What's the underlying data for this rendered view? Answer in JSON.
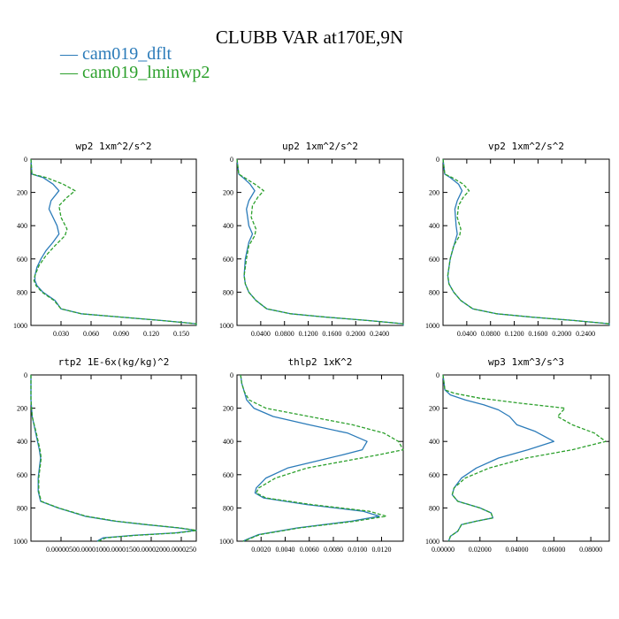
{
  "title": "CLUBB VAR at170E,9N",
  "legend": [
    {
      "label": "cam019_dflt",
      "color": "#2b7bb9"
    },
    {
      "label": "cam019_lminwp2",
      "color": "#2ca02c"
    }
  ],
  "chart_data": [
    {
      "type": "line",
      "title": "wp2  1xm^2/s^2",
      "xlim": [
        0,
        0.165
      ],
      "ylim": [
        0,
        1000
      ],
      "y_inverted": true,
      "xticks": [
        0.03,
        0.06,
        0.09,
        0.12,
        0.15
      ],
      "xtick_labels": [
        "0.030",
        "0.060",
        "0.090",
        "0.120",
        "0.150"
      ],
      "yticks": [
        0,
        200,
        400,
        600,
        800,
        1000
      ],
      "ytick_labels": [
        "0",
        "200",
        "400",
        "600",
        "800",
        "1000"
      ],
      "series": [
        {
          "name": "cam019_dflt",
          "y": [
            0,
            90,
            110,
            150,
            190,
            250,
            300,
            400,
            450,
            500,
            550,
            600,
            650,
            700,
            730,
            760,
            800,
            850,
            900,
            930,
            950,
            970,
            990,
            1000
          ],
          "x": [
            0,
            0.001,
            0.012,
            0.022,
            0.028,
            0.02,
            0.018,
            0.026,
            0.028,
            0.022,
            0.015,
            0.01,
            0.006,
            0.004,
            0.004,
            0.006,
            0.012,
            0.024,
            0.03,
            0.05,
            0.09,
            0.13,
            0.165,
            0.165
          ]
        },
        {
          "name": "cam019_lminwp2",
          "y": [
            0,
            90,
            110,
            150,
            190,
            230,
            280,
            350,
            420,
            460,
            520,
            580,
            640,
            700,
            730,
            760,
            800,
            850,
            900,
            930,
            950,
            970,
            990,
            1000
          ],
          "x": [
            0,
            0.001,
            0.015,
            0.032,
            0.044,
            0.036,
            0.028,
            0.03,
            0.036,
            0.034,
            0.024,
            0.015,
            0.008,
            0.004,
            0.003,
            0.005,
            0.011,
            0.023,
            0.03,
            0.05,
            0.09,
            0.13,
            0.165,
            0.165
          ]
        }
      ]
    },
    {
      "type": "line",
      "title": "up2  1xm^2/s^2",
      "xlim": [
        0,
        0.28
      ],
      "ylim": [
        0,
        1000
      ],
      "y_inverted": true,
      "xticks": [
        0.04,
        0.08,
        0.12,
        0.16,
        0.2,
        0.24
      ],
      "xtick_labels": [
        "0.0400",
        "0.0800",
        "0.1200",
        "0.1600",
        "0.2000",
        "0.2400"
      ],
      "yticks": [
        0,
        200,
        400,
        600,
        800,
        1000
      ],
      "ytick_labels": [
        "0",
        "200",
        "400",
        "600",
        "800",
        "1000"
      ],
      "series": [
        {
          "name": "cam019_dflt",
          "y": [
            0,
            90,
            110,
            150,
            190,
            250,
            300,
            400,
            450,
            500,
            600,
            700,
            750,
            800,
            850,
            900,
            930,
            950,
            970,
            990,
            1000
          ],
          "x": [
            0,
            0.003,
            0.01,
            0.022,
            0.03,
            0.02,
            0.016,
            0.02,
            0.026,
            0.02,
            0.014,
            0.012,
            0.014,
            0.02,
            0.032,
            0.05,
            0.09,
            0.15,
            0.22,
            0.28,
            0.28
          ]
        },
        {
          "name": "cam019_lminwp2",
          "y": [
            0,
            90,
            110,
            150,
            190,
            230,
            280,
            350,
            420,
            460,
            520,
            600,
            700,
            750,
            800,
            850,
            900,
            930,
            950,
            970,
            990,
            1000
          ],
          "x": [
            0,
            0.003,
            0.012,
            0.03,
            0.045,
            0.035,
            0.026,
            0.024,
            0.032,
            0.03,
            0.02,
            0.016,
            0.012,
            0.014,
            0.02,
            0.032,
            0.05,
            0.09,
            0.15,
            0.22,
            0.28,
            0.28
          ]
        }
      ]
    },
    {
      "type": "line",
      "title": "vp2  1xm^2/s^2",
      "xlim": [
        0,
        0.28
      ],
      "ylim": [
        0,
        1000
      ],
      "y_inverted": true,
      "xticks": [
        0.04,
        0.08,
        0.12,
        0.16,
        0.2,
        0.24
      ],
      "xtick_labels": [
        "0.0400",
        "0.0800",
        "0.1200",
        "0.1600",
        "0.2000",
        "0.2400"
      ],
      "yticks": [
        0,
        200,
        400,
        600,
        800,
        1000
      ],
      "ytick_labels": [
        "0",
        "200",
        "400",
        "600",
        "800",
        "1000"
      ],
      "series": [
        {
          "name": "cam019_dflt",
          "y": [
            0,
            90,
            110,
            150,
            190,
            250,
            300,
            400,
            450,
            500,
            600,
            700,
            750,
            800,
            850,
            900,
            930,
            950,
            970,
            990,
            1000
          ],
          "x": [
            0,
            0.003,
            0.012,
            0.026,
            0.032,
            0.024,
            0.02,
            0.022,
            0.024,
            0.02,
            0.012,
            0.008,
            0.01,
            0.018,
            0.03,
            0.05,
            0.09,
            0.15,
            0.22,
            0.28,
            0.28
          ]
        },
        {
          "name": "cam019_lminwp2",
          "y": [
            0,
            90,
            110,
            150,
            190,
            230,
            280,
            350,
            420,
            460,
            520,
            600,
            700,
            750,
            800,
            850,
            900,
            930,
            950,
            970,
            990,
            1000
          ],
          "x": [
            0,
            0.003,
            0.015,
            0.034,
            0.044,
            0.034,
            0.026,
            0.024,
            0.03,
            0.028,
            0.018,
            0.012,
            0.008,
            0.01,
            0.018,
            0.03,
            0.05,
            0.09,
            0.15,
            0.22,
            0.28,
            0.28
          ]
        }
      ]
    },
    {
      "type": "line",
      "title": "rtp2  1E-6x(kg/kg)^2",
      "xlim": [
        0,
        2.75e-05
      ],
      "ylim": [
        0,
        1000
      ],
      "y_inverted": true,
      "xticks": [
        5e-06,
        1e-05,
        1.5e-05,
        2e-05,
        2.5e-05
      ],
      "xtick_labels": [
        "0.0000050",
        "0.0000100",
        "0.0000150",
        "0.0000200",
        "0.0000250"
      ],
      "yticks": [
        0,
        200,
        400,
        600,
        800,
        1000
      ],
      "ytick_labels": [
        "0",
        "200",
        "400",
        "600",
        "800",
        "1000"
      ],
      "series": [
        {
          "name": "cam019_dflt",
          "y": [
            0,
            150,
            250,
            350,
            450,
            500,
            560,
            620,
            700,
            760,
            800,
            850,
            880,
            900,
            920,
            935,
            950,
            965,
            980,
            1000
          ],
          "x": [
            0,
            0,
            2e-07,
            8e-07,
            1.4e-06,
            1.6e-06,
            1.4e-06,
            1.2e-06,
            1.2e-06,
            1.6e-06,
            4.5e-06,
            9e-06,
            1.4e-05,
            1.9e-05,
            2.45e-05,
            2.75e-05,
            2.4e-05,
            1.7e-05,
            1.2e-05,
            1.1e-05
          ]
        },
        {
          "name": "cam019_lminwp2",
          "y": [
            0,
            150,
            250,
            350,
            450,
            500,
            560,
            620,
            700,
            760,
            800,
            850,
            880,
            900,
            920,
            935,
            950,
            965,
            980,
            1000
          ],
          "x": [
            0,
            0,
            2e-07,
            9e-07,
            1.5e-06,
            1.7e-06,
            1.5e-06,
            1.3e-06,
            1.3e-06,
            1.7e-06,
            4.6e-06,
            9.2e-06,
            1.42e-05,
            1.92e-05,
            2.48e-05,
            2.75e-05,
            2.45e-05,
            1.75e-05,
            1.25e-05,
            1.12e-05
          ]
        }
      ]
    },
    {
      "type": "line",
      "title": "thlp2  1xK^2",
      "xlim": [
        0,
        0.0138
      ],
      "ylim": [
        0,
        1000
      ],
      "y_inverted": true,
      "xticks": [
        0.002,
        0.004,
        0.006,
        0.008,
        0.01,
        0.012
      ],
      "xtick_labels": [
        "0.0020",
        "0.0040",
        "0.0060",
        "0.0080",
        "0.0100",
        "0.0120"
      ],
      "yticks": [
        0,
        200,
        400,
        600,
        800,
        1000
      ],
      "ytick_labels": [
        "0",
        "200",
        "400",
        "600",
        "800",
        "1000"
      ],
      "series": [
        {
          "name": "cam019_dflt",
          "y": [
            0,
            50,
            100,
            150,
            200,
            250,
            300,
            350,
            400,
            450,
            480,
            520,
            560,
            620,
            680,
            710,
            740,
            780,
            820,
            850,
            880,
            920,
            960,
            990,
            1000
          ],
          "x": [
            0.0003,
            0.0004,
            0.0006,
            0.0008,
            0.0014,
            0.003,
            0.006,
            0.0092,
            0.0108,
            0.0104,
            0.0088,
            0.0065,
            0.0042,
            0.0024,
            0.0016,
            0.0015,
            0.0022,
            0.0058,
            0.0105,
            0.0118,
            0.0095,
            0.005,
            0.0018,
            0.0008,
            0.0005
          ]
        },
        {
          "name": "cam019_lminwp2",
          "y": [
            0,
            50,
            100,
            150,
            200,
            250,
            300,
            350,
            400,
            450,
            480,
            520,
            560,
            620,
            680,
            710,
            740,
            780,
            820,
            850,
            880,
            920,
            960,
            990,
            1000
          ],
          "x": [
            0.0003,
            0.0004,
            0.0006,
            0.001,
            0.0024,
            0.006,
            0.0096,
            0.0122,
            0.0134,
            0.0138,
            0.0118,
            0.0088,
            0.0058,
            0.0032,
            0.0018,
            0.0016,
            0.0024,
            0.0062,
            0.011,
            0.0124,
            0.0098,
            0.0052,
            0.0019,
            0.0009,
            0.0005
          ]
        }
      ]
    },
    {
      "type": "line",
      "title": "wp3  1xm^3/s^3",
      "xlim": [
        0,
        0.09
      ],
      "ylim": [
        0,
        1000
      ],
      "y_inverted": true,
      "xticks": [
        0,
        0.02,
        0.04,
        0.06,
        0.08
      ],
      "xtick_labels": [
        "0.00000",
        "0.02000",
        "0.04000",
        "0.06000",
        "0.08000"
      ],
      "yticks": [
        0,
        200,
        400,
        600,
        800,
        1000
      ],
      "ytick_labels": [
        "0",
        "200",
        "400",
        "600",
        "800",
        "1000"
      ],
      "series": [
        {
          "name": "cam019_dflt",
          "y": [
            0,
            90,
            120,
            150,
            180,
            210,
            250,
            300,
            340,
            400,
            450,
            500,
            560,
            620,
            680,
            720,
            760,
            800,
            830,
            860,
            880,
            900,
            940,
            970,
            1000
          ],
          "x": [
            0,
            0.001,
            0.004,
            0.012,
            0.022,
            0.03,
            0.036,
            0.04,
            0.05,
            0.06,
            0.046,
            0.03,
            0.018,
            0.01,
            0.006,
            0.005,
            0.008,
            0.02,
            0.026,
            0.027,
            0.018,
            0.01,
            0.008,
            0.004,
            0.003
          ]
        },
        {
          "name": "cam019_lminwp2",
          "y": [
            0,
            90,
            110,
            140,
            170,
            200,
            250,
            300,
            350,
            400,
            450,
            500,
            560,
            620,
            680,
            720,
            760,
            800,
            830,
            860,
            880,
            900,
            940,
            970,
            1000
          ],
          "x": [
            0,
            0.001,
            0.006,
            0.02,
            0.042,
            0.066,
            0.062,
            0.07,
            0.082,
            0.088,
            0.07,
            0.045,
            0.025,
            0.012,
            0.006,
            0.005,
            0.008,
            0.02,
            0.026,
            0.027,
            0.018,
            0.01,
            0.008,
            0.004,
            0.003
          ]
        }
      ]
    }
  ]
}
